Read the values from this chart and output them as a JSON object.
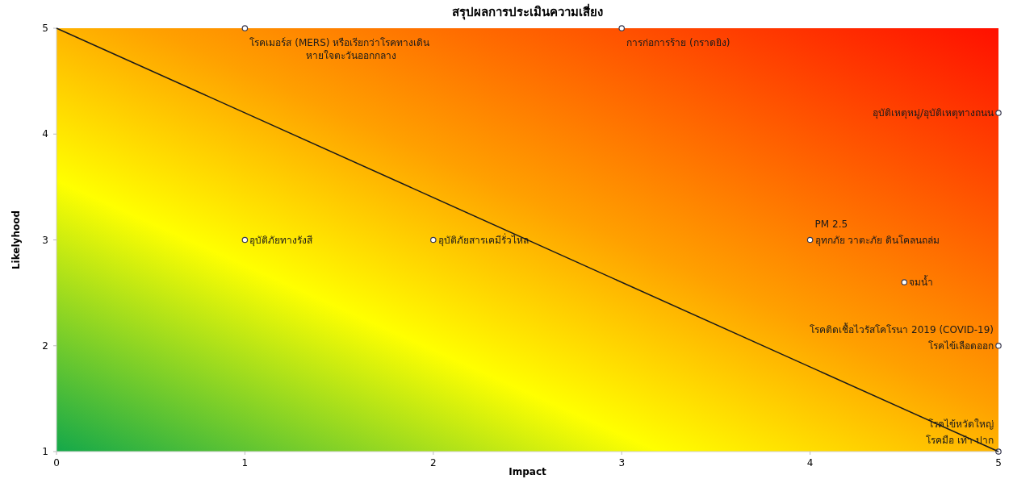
{
  "chart_data": {
    "type": "scatter",
    "title": "สรุปผลการประเมินความเสี่ยง",
    "xlabel": "Impact",
    "ylabel": "Likelyhood",
    "xlim": [
      0,
      5
    ],
    "ylim": [
      1,
      5
    ],
    "xticks": [
      0,
      1,
      2,
      3,
      4,
      5
    ],
    "yticks": [
      1,
      2,
      3,
      4,
      5
    ],
    "grid": false,
    "marker": "circle",
    "series": [
      {
        "color": "#ffffff",
        "x": [
          1,
          3,
          5,
          1,
          2,
          4,
          4.5,
          5,
          5
        ],
        "values": [
          5,
          5,
          4.2,
          3,
          3,
          3,
          2.6,
          2,
          1
        ]
      },
      {
        "type": "line",
        "color": "#1a1a1a",
        "marker": "none",
        "x": [
          0,
          5
        ],
        "values": [
          5,
          1
        ]
      }
    ],
    "annotations": [
      {
        "text": "โรคเมอร์ส (MERS) หรือเรียกว่าโรคทางเดิน\nหายใจตะวันออกกลาง",
        "x": 1,
        "y": 5
      },
      {
        "text": "การก่อการร้าย (กราดยิง)",
        "x": 3,
        "y": 5
      },
      {
        "text": "อุบัติเหตุหมู่/อุบัติเหตุทางถนน",
        "x": 5,
        "y": 4.2
      },
      {
        "text": "อุบัติภัยทางรังสี",
        "x": 1,
        "y": 3
      },
      {
        "text": "อุบัติภัยสารเคมีรั่วไหล",
        "x": 2,
        "y": 3
      },
      {
        "text": "PM 2.5",
        "x": 4,
        "y": 3
      },
      {
        "text": "อุทกภัย วาตะภัย ดินโคลนถล่ม",
        "x": 4,
        "y": 3
      },
      {
        "text": "จมน้ำ",
        "x": 4.5,
        "y": 2.6
      },
      {
        "text": "โรคติดเชื้อไวรัสโคโรนา 2019 (COVID-19)",
        "x": 5,
        "y": 2
      },
      {
        "text": "โรคไข้เลือดออก",
        "x": 5,
        "y": 2
      },
      {
        "text": "โรคไข้หวัดใหญ่",
        "x": 5,
        "y": 1
      },
      {
        "text": "โรคมือ เท้า ปาก",
        "x": 5,
        "y": 1
      }
    ]
  }
}
